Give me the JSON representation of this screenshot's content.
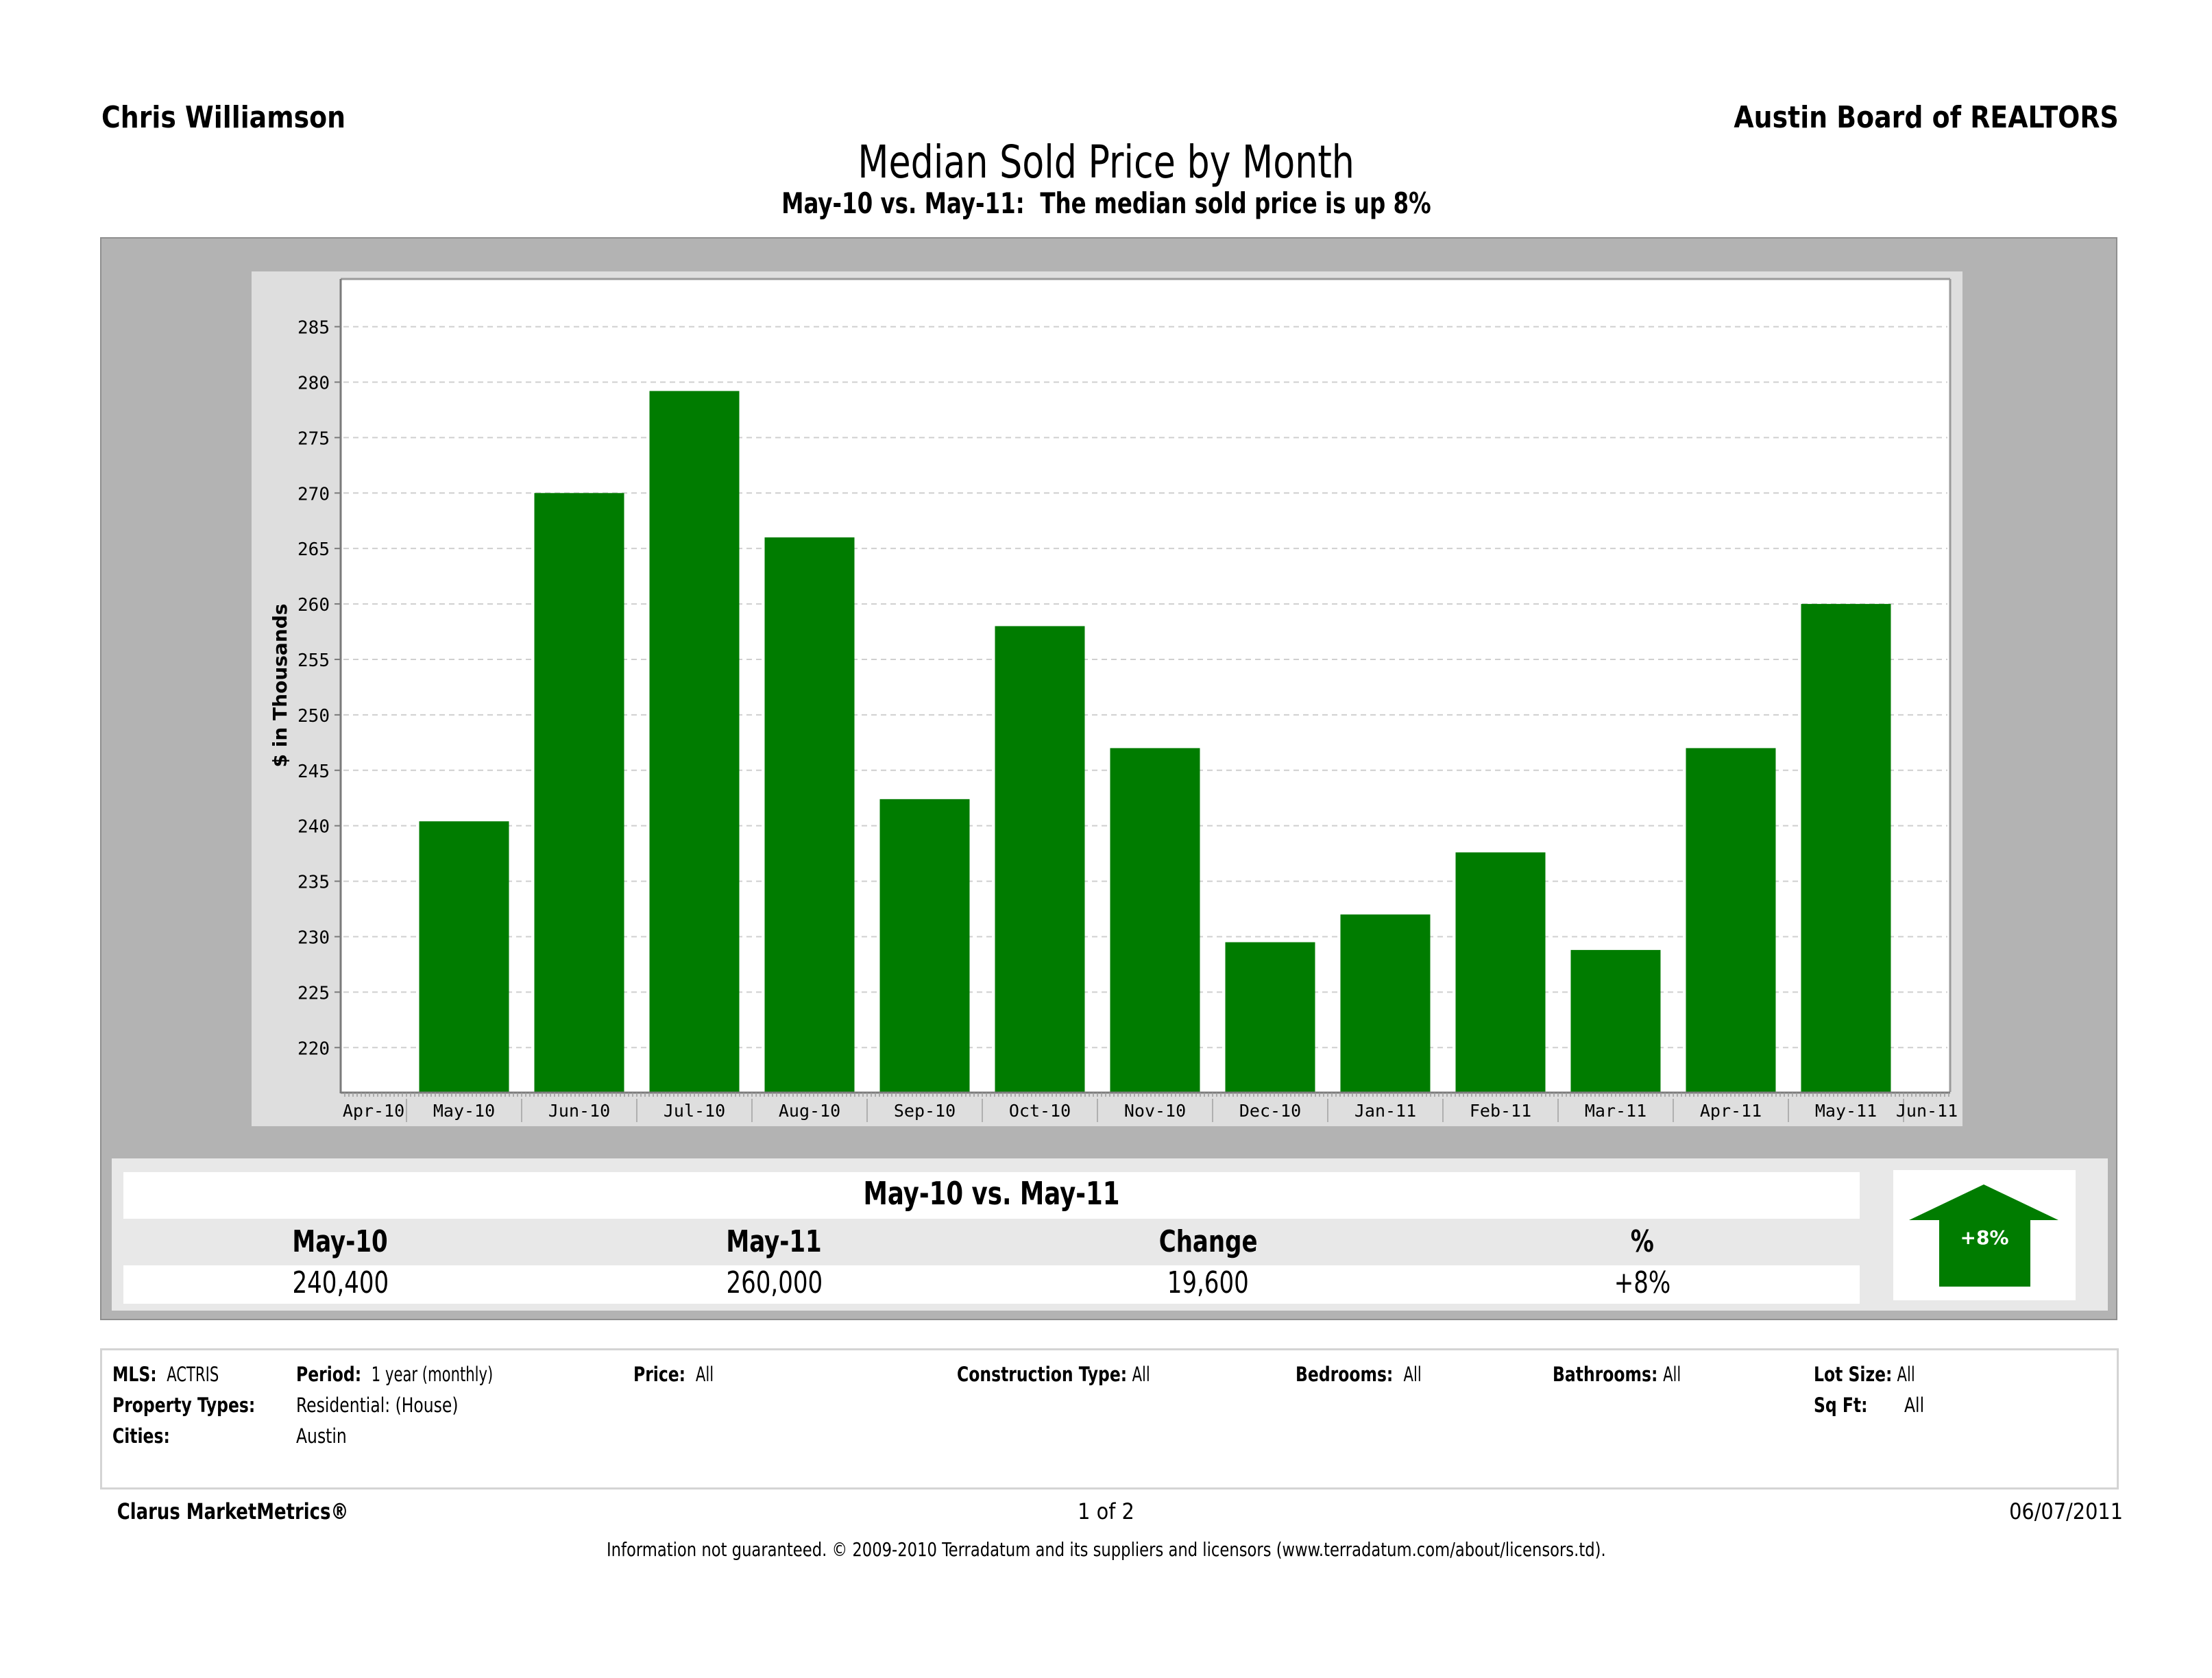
{
  "header": {
    "agent_name": "Chris Williamson",
    "organization": "Austin Board of REALTORS"
  },
  "chart_data": {
    "type": "bar",
    "title": "Median Sold Price by Month",
    "subtitle": "May-10 vs. May-11:  The median sold price is up 8%",
    "xlabel": "",
    "ylabel": "$ in Thousands",
    "axis_labels": [
      "Apr-10",
      "May-10",
      "Jun-10",
      "Jul-10",
      "Aug-10",
      "Sep-10",
      "Oct-10",
      "Nov-10",
      "Dec-10",
      "Jan-11",
      "Feb-11",
      "Mar-11",
      "Apr-11",
      "May-11",
      "Jun-11"
    ],
    "categories": [
      "May-10",
      "Jun-10",
      "Jul-10",
      "Aug-10",
      "Sep-10",
      "Oct-10",
      "Nov-10",
      "Dec-10",
      "Jan-11",
      "Feb-11",
      "Mar-11",
      "Apr-11",
      "May-11"
    ],
    "series": [
      {
        "name": "Median Sold Price",
        "values": [
          240.4,
          270.0,
          279.2,
          266.0,
          242.4,
          258.0,
          247.0,
          229.5,
          232.0,
          237.6,
          228.8,
          247.0,
          260.0
        ]
      }
    ],
    "yticks": [
      220,
      225,
      230,
      235,
      240,
      245,
      250,
      255,
      260,
      265,
      270,
      275,
      280,
      285
    ],
    "ylim": [
      216,
      289.3
    ],
    "grid": true,
    "legend": "none",
    "bar_color": "#007c00"
  },
  "summary": {
    "title": "May-10 vs. May-11",
    "headers": [
      "May-10",
      "May-11",
      "Change",
      "%"
    ],
    "values": [
      "240,400",
      "260,000",
      "19,600",
      "+8%"
    ],
    "badge": {
      "label": "+8%",
      "direction": "up",
      "color": "#007c00",
      "icon": "up-arrow-icon"
    }
  },
  "criteria": {
    "mls_label": "MLS:",
    "mls_value": "ACTRIS",
    "period_label": "Period:",
    "period_value": "1 year (monthly)",
    "price_label": "Price:",
    "price_value": "All",
    "construction_label": "Construction Type:",
    "construction_value": "All",
    "bedrooms_label": "Bedrooms:",
    "bedrooms_value": "All",
    "bathrooms_label": "Bathrooms:",
    "bathrooms_value": "All",
    "lot_label": "Lot Size:",
    "lot_value": "All",
    "property_label": "Property Types:",
    "property_value": "Residential: (House)",
    "sqft_label": "Sq Ft:",
    "sqft_value": "All",
    "cities_label": "Cities:",
    "cities_value": "Austin"
  },
  "footer": {
    "brand": "Clarus MarketMetrics®",
    "page": "1 of 2",
    "date": "06/07/2011",
    "disclaimer": "Information not guaranteed.  © 2009-2010 Terradatum and its suppliers and licensors (www.terradatum.com/about/licensors.td)."
  }
}
